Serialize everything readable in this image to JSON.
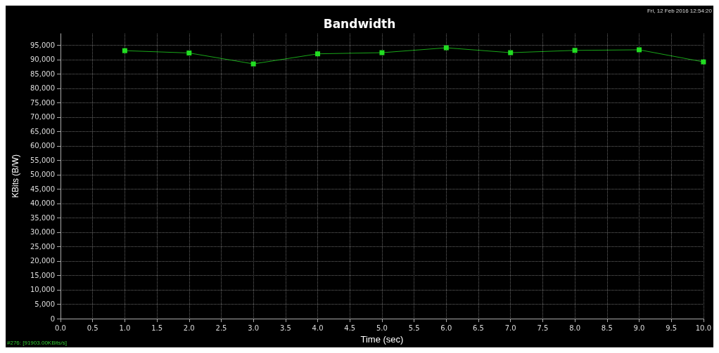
{
  "chart_data": {
    "type": "line",
    "title": "Bandwidth",
    "xlabel": "Time (sec)",
    "ylabel": "KBits (B/W)",
    "annotations": [
      "Fri, 12 Feb 2016 12:54:20",
      "#276: [91903.00KBits/s]"
    ],
    "x": [
      1,
      2,
      3,
      4,
      5,
      6,
      7,
      8,
      9,
      10
    ],
    "series": [
      {
        "color": "#22dd22",
        "values": [
          93100,
          92300,
          88500,
          92000,
          92400,
          94100,
          92400,
          93200,
          93400,
          89200
        ]
      }
    ],
    "xlim": [
      0,
      10
    ],
    "xticks": [
      {
        "value": 0,
        "label": "0.0"
      },
      0.5,
      {
        "value": 1,
        "label": "1.0"
      },
      1.5,
      {
        "value": 2,
        "label": "2.0"
      },
      2.5,
      {
        "value": 3,
        "label": "3.0"
      },
      3.5,
      {
        "value": 4,
        "label": "4.0"
      },
      4.5,
      {
        "value": 5,
        "label": "5.0"
      },
      5.5,
      {
        "value": 6,
        "label": "6.0"
      },
      6.5,
      {
        "value": 7,
        "label": "7.0"
      },
      7.5,
      {
        "value": 8,
        "label": "8.0"
      },
      8.5,
      {
        "value": 9,
        "label": "9.0"
      },
      9.5,
      {
        "value": 10,
        "label": "10.0"
      }
    ],
    "ylim": [
      0,
      99000
    ],
    "yticks": [
      0,
      {
        "value": 5000,
        "label": "5,000"
      },
      {
        "value": 10000,
        "label": "10,000"
      },
      {
        "value": 15000,
        "label": "15,000"
      },
      {
        "value": 20000,
        "label": "20,000"
      },
      {
        "value": 25000,
        "label": "25,000"
      },
      {
        "value": 30000,
        "label": "30,000"
      },
      {
        "value": 35000,
        "label": "35,000"
      },
      {
        "value": 40000,
        "label": "40,000"
      },
      {
        "value": 45000,
        "label": "45,000"
      },
      {
        "value": 50000,
        "label": "50,000"
      },
      {
        "value": 55000,
        "label": "55,000"
      },
      {
        "value": 60000,
        "label": "60,000"
      },
      {
        "value": 65000,
        "label": "65,000"
      },
      {
        "value": 70000,
        "label": "70,000"
      },
      {
        "value": 75000,
        "label": "75,000"
      },
      {
        "value": 80000,
        "label": "80,000"
      },
      {
        "value": 85000,
        "label": "85,000"
      },
      {
        "value": 90000,
        "label": "90,000"
      },
      {
        "value": 95000,
        "label": "95,000"
      }
    ],
    "grid": true,
    "marker": "square",
    "line_style": "solid"
  }
}
